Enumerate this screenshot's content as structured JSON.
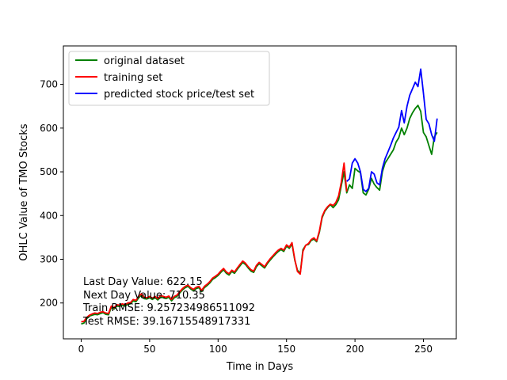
{
  "chart_data": {
    "type": "line",
    "title": "",
    "xlabel": "Time in Days",
    "ylabel": "OHLC Value of TMO Stocks",
    "xlim": [
      -13,
      274
    ],
    "ylim": [
      118,
      788
    ],
    "xticks": [
      0,
      50,
      100,
      150,
      200,
      250
    ],
    "yticks": [
      200,
      300,
      400,
      500,
      600,
      700
    ],
    "grid": false,
    "legend_position": "top-left",
    "series": [
      {
        "name": "original dataset",
        "color": "#008000",
        "x": [
          0,
          2,
          4,
          6,
          8,
          10,
          12,
          14,
          16,
          18,
          20,
          22,
          24,
          26,
          28,
          30,
          32,
          34,
          36,
          38,
          40,
          42,
          44,
          46,
          48,
          50,
          52,
          54,
          56,
          58,
          60,
          62,
          64,
          66,
          68,
          70,
          72,
          74,
          76,
          78,
          80,
          82,
          84,
          86,
          88,
          90,
          92,
          94,
          96,
          98,
          100,
          102,
          104,
          106,
          108,
          110,
          112,
          114,
          116,
          118,
          120,
          122,
          124,
          126,
          128,
          130,
          132,
          134,
          136,
          138,
          140,
          142,
          144,
          146,
          148,
          150,
          152,
          154,
          156,
          158,
          160,
          162,
          164,
          166,
          168,
          170,
          172,
          174,
          176,
          178,
          180,
          182,
          184,
          186,
          188,
          190,
          192,
          194,
          196,
          198,
          200,
          202,
          204,
          206,
          208,
          210,
          212,
          214,
          216,
          218,
          220,
          222,
          224,
          226,
          228,
          230,
          232,
          234,
          236,
          238,
          240,
          242,
          244,
          246,
          248,
          250,
          252,
          254,
          256,
          258,
          260
        ],
        "y": [
          152,
          154,
          164,
          170,
          172,
          174,
          173,
          176,
          178,
          174,
          173,
          190,
          186,
          193,
          192,
          195,
          193,
          197,
          198,
          205,
          203,
          212,
          218,
          210,
          209,
          212,
          208,
          212,
          207,
          214,
          212,
          210,
          213,
          205,
          212,
          215,
          223,
          230,
          235,
          238,
          232,
          228,
          233,
          235,
          226,
          235,
          240,
          246,
          254,
          258,
          263,
          270,
          276,
          268,
          264,
          272,
          268,
          277,
          285,
          293,
          288,
          280,
          273,
          270,
          283,
          290,
          285,
          280,
          290,
          298,
          305,
          312,
          318,
          322,
          318,
          330,
          325,
          335,
          298,
          275,
          268,
          322,
          332,
          334,
          343,
          346,
          340,
          362,
          395,
          410,
          418,
          425,
          418,
          425,
          436,
          468,
          500,
          452,
          470,
          462,
          508,
          502,
          498,
          452,
          447,
          460,
          485,
          472,
          464,
          458,
          500,
          520,
          530,
          540,
          550,
          568,
          578,
          600,
          585,
          600,
          622,
          635,
          645,
          652,
          638,
          590,
          580,
          560,
          540,
          580,
          590
        ]
      },
      {
        "name": "training set",
        "color": "#ff0000",
        "x": [
          0,
          2,
          4,
          6,
          8,
          10,
          12,
          14,
          16,
          18,
          20,
          22,
          24,
          26,
          28,
          30,
          32,
          34,
          36,
          38,
          40,
          42,
          44,
          46,
          48,
          50,
          52,
          54,
          56,
          58,
          60,
          62,
          64,
          66,
          68,
          70,
          72,
          74,
          76,
          78,
          80,
          82,
          84,
          86,
          88,
          90,
          92,
          94,
          96,
          98,
          100,
          102,
          104,
          106,
          108,
          110,
          112,
          114,
          116,
          118,
          120,
          122,
          124,
          126,
          128,
          130,
          132,
          134,
          136,
          138,
          140,
          142,
          144,
          146,
          148,
          150,
          152,
          154,
          156,
          158,
          160,
          162,
          164,
          166,
          168,
          170,
          172,
          174,
          176,
          178,
          180,
          182,
          184,
          186,
          188,
          190,
          192,
          194
        ],
        "y": [
          157,
          158,
          167,
          172,
          175,
          177,
          176,
          179,
          180,
          177,
          176,
          193,
          189,
          196,
          195,
          198,
          196,
          200,
          201,
          208,
          206,
          215,
          221,
          213,
          212,
          215,
          211,
          215,
          210,
          217,
          215,
          213,
          216,
          208,
          215,
          218,
          226,
          233,
          238,
          241,
          235,
          231,
          236,
          238,
          229,
          238,
          243,
          249,
          257,
          261,
          266,
          273,
          279,
          271,
          267,
          275,
          271,
          280,
          288,
          296,
          291,
          283,
          276,
          273,
          286,
          293,
          288,
          283,
          293,
          301,
          308,
          315,
          321,
          325,
          321,
          333,
          328,
          338,
          300,
          272,
          266,
          318,
          332,
          336,
          345,
          349,
          342,
          365,
          398,
          412,
          420,
          426,
          423,
          430,
          445,
          476,
          520,
          455
        ]
      },
      {
        "name": "predicted stock price/test set",
        "color": "#0000ff",
        "x": [
          194,
          196,
          198,
          200,
          202,
          204,
          206,
          208,
          210,
          212,
          214,
          216,
          218,
          220,
          222,
          224,
          226,
          228,
          230,
          232,
          234,
          236,
          238,
          240,
          242,
          244,
          246,
          248,
          250,
          252,
          254,
          256,
          258,
          260
        ],
        "y": [
          478,
          484,
          520,
          530,
          520,
          500,
          460,
          455,
          462,
          500,
          495,
          475,
          470,
          508,
          530,
          545,
          560,
          577,
          590,
          602,
          640,
          612,
          650,
          675,
          690,
          705,
          695,
          735,
          680,
          620,
          610,
          585,
          570,
          622
        ]
      }
    ],
    "annotations": [
      "Last Day Value: 622.15",
      "Next Day Value: 710.35",
      "Train RMSE: 9.257234986511092",
      "Test RMSE: 39.16715548917331"
    ]
  }
}
